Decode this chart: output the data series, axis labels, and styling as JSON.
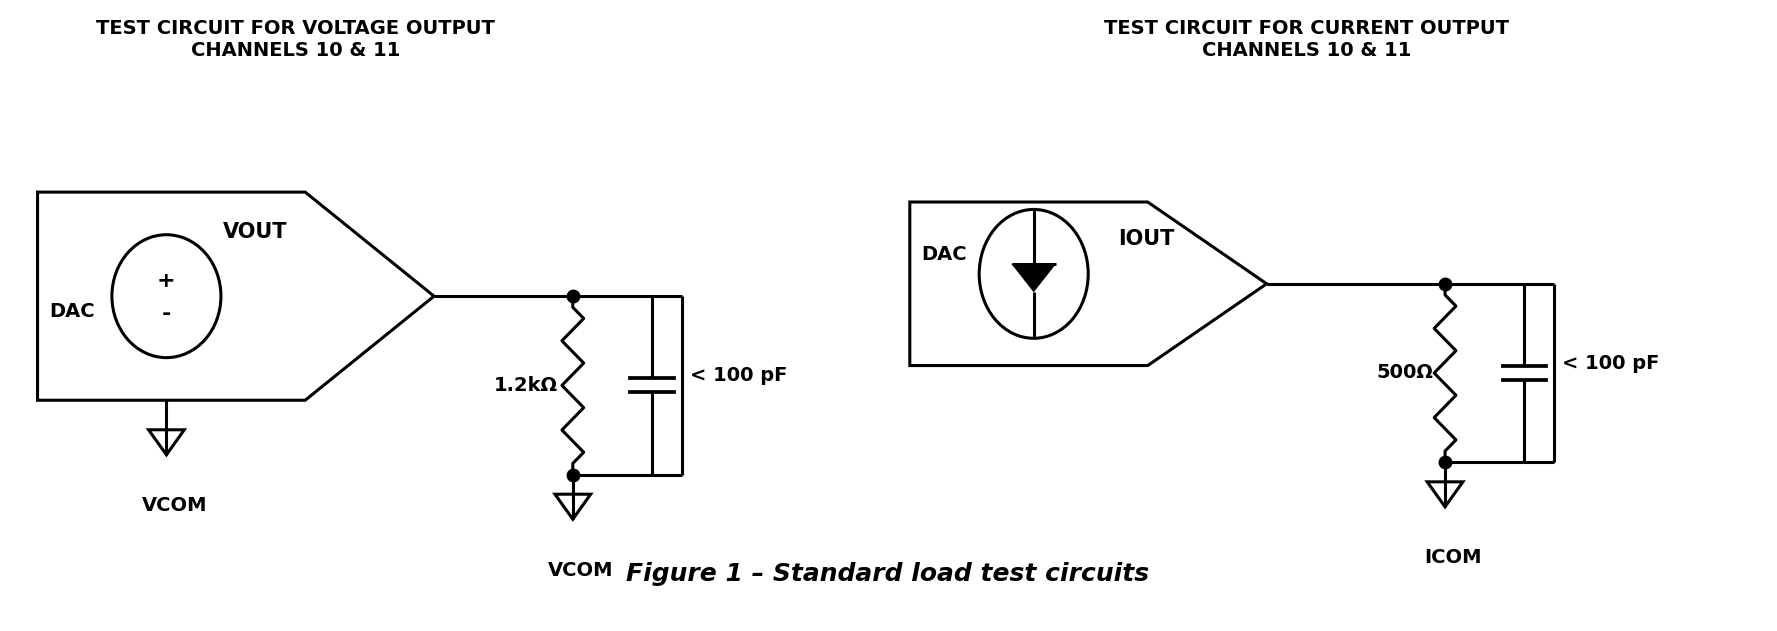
{
  "bg_color": "#ffffff",
  "line_color": "#000000",
  "lw": 2.2,
  "dot_size": 9,
  "title1": "TEST CIRCUIT FOR VOLTAGE OUTPUT\nCHANNELS 10 & 11",
  "title2": "TEST CIRCUIT FOR CURRENT OUTPUT\nCHANNELS 10 & 11",
  "caption": "Figure 1 – Standard load test circuits",
  "title_fontsize": 14,
  "caption_fontsize": 18,
  "label_fontsize": 14
}
